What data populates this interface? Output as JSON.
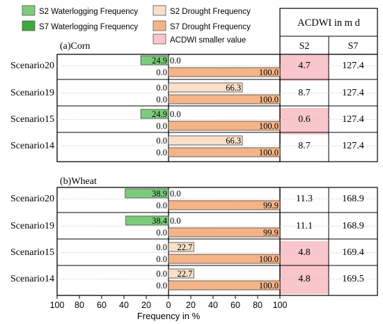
{
  "chart_data": {
    "type": "bar",
    "xlabel": "Frequency in %",
    "x_ticks": [
      "100",
      "80",
      "60",
      "40",
      "20",
      "0",
      "20",
      "40",
      "60",
      "80",
      "100"
    ],
    "xlim": [
      -100,
      100
    ],
    "legend": {
      "placement": "top",
      "items": [
        {
          "key": "s2_wl",
          "label": "S2 Waterlogging Frequency",
          "color": "#7ccc7c"
        },
        {
          "key": "s7_wl",
          "label": "S7 Waterlogging Frequency",
          "color": "#3aaa3a"
        },
        {
          "key": "s2_dr",
          "label": "S2 Drought Frequency",
          "color": "#fadfc8"
        },
        {
          "key": "s7_dr",
          "label": "S7 Drought Frequency",
          "color": "#f5b487"
        },
        {
          "key": "acdwi_small",
          "label": "ACDWI smaller value",
          "color": "#f9c6cc"
        }
      ]
    },
    "table": {
      "header": "ACDWI in m d",
      "columns": [
        "S2",
        "S7"
      ]
    },
    "panels": [
      {
        "title": "(a)Corn",
        "scenarios": [
          {
            "name": "Scenario20",
            "s2_waterlogging": 24.9,
            "s2_drought": 0.0,
            "s7_waterlogging": 0.0,
            "s7_drought": 100.0,
            "acdwi_s2": "4.7",
            "acdwi_s7": "127.4",
            "highlight_s2": true
          },
          {
            "name": "Scenario19",
            "s2_waterlogging": 0.0,
            "s2_drought": 66.3,
            "s7_waterlogging": 0.0,
            "s7_drought": 100.0,
            "acdwi_s2": "8.7",
            "acdwi_s7": "127.4",
            "highlight_s2": false
          },
          {
            "name": "Scenario15",
            "s2_waterlogging": 24.9,
            "s2_drought": 0.0,
            "s7_waterlogging": 0.0,
            "s7_drought": 100.0,
            "acdwi_s2": "0.6",
            "acdwi_s7": "127.4",
            "highlight_s2": true
          },
          {
            "name": "Scenario14",
            "s2_waterlogging": 0.0,
            "s2_drought": 66.3,
            "s7_waterlogging": 0.0,
            "s7_drought": 100.0,
            "acdwi_s2": "8.7",
            "acdwi_s7": "127.4",
            "highlight_s2": false
          }
        ]
      },
      {
        "title": "(b)Wheat",
        "scenarios": [
          {
            "name": "Scenario20",
            "s2_waterlogging": 38.9,
            "s2_drought": 0.0,
            "s7_waterlogging": 0.0,
            "s7_drought": 99.9,
            "acdwi_s2": "11.3",
            "acdwi_s7": "168.9",
            "highlight_s2": false
          },
          {
            "name": "Scenario19",
            "s2_waterlogging": 38.4,
            "s2_drought": 0.0,
            "s7_waterlogging": 0.0,
            "s7_drought": 99.9,
            "acdwi_s2": "11.1",
            "acdwi_s7": "168.9",
            "highlight_s2": false
          },
          {
            "name": "Scenario15",
            "s2_waterlogging": 0.0,
            "s2_drought": 22.7,
            "s7_waterlogging": 0.0,
            "s7_drought": 100.0,
            "acdwi_s2": "4.8",
            "acdwi_s7": "169.4",
            "highlight_s2": true
          },
          {
            "name": "Scenario14",
            "s2_waterlogging": 0.0,
            "s2_drought": 22.7,
            "s7_waterlogging": 0.0,
            "s7_drought": 100.0,
            "acdwi_s2": "4.8",
            "acdwi_s7": "169.5",
            "highlight_s2": true
          }
        ]
      }
    ]
  }
}
